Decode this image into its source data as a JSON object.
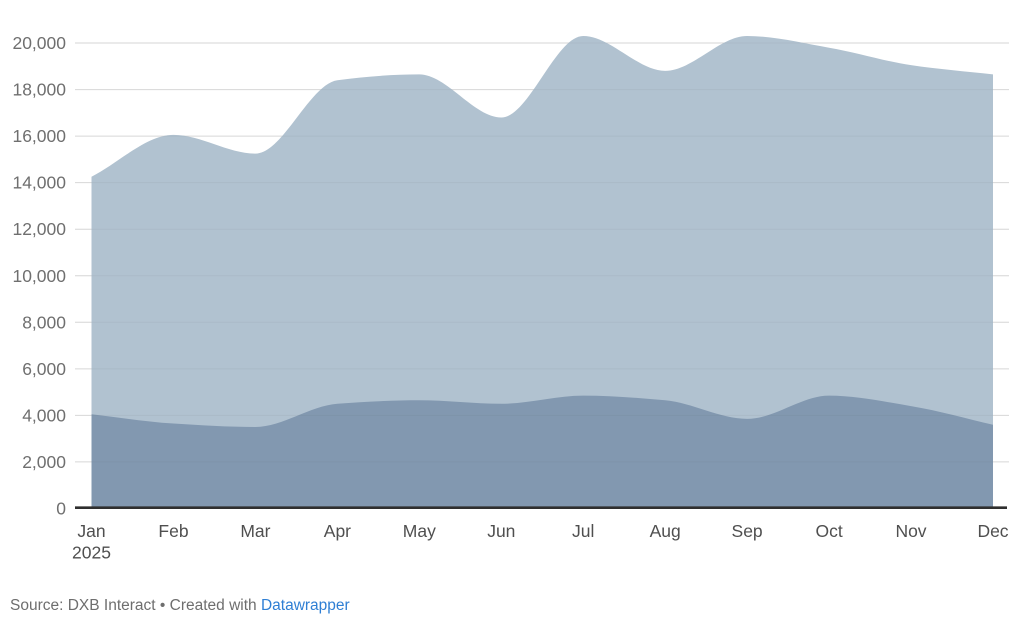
{
  "chart_data": {
    "type": "area",
    "stacked": true,
    "grid": true,
    "legend": "none",
    "x_categories": [
      "Jan",
      "Feb",
      "Mar",
      "Apr",
      "May",
      "Jun",
      "Jul",
      "Aug",
      "Sep",
      "Oct",
      "Nov",
      "Dec"
    ],
    "x_axis_year": "2025",
    "ylim": [
      0,
      20000
    ],
    "y_tick_step": 2000,
    "y_tick_labels": [
      "0",
      "2,000",
      "4,000",
      "6,000",
      "8,000",
      "10,000",
      "12,000",
      "14,000",
      "16,000",
      "18,000",
      "20,000"
    ],
    "series": [
      {
        "name": "light-upper-area-top-boundary",
        "color": "#b1c2d0",
        "values": [
          14250,
          16050,
          15250,
          18400,
          18650,
          16800,
          20300,
          18800,
          20300,
          19800,
          19050,
          18650
        ]
      },
      {
        "name": "dark-lower-area",
        "color": "#8298b0",
        "values": [
          4050,
          3650,
          3500,
          4500,
          4650,
          4500,
          4850,
          4650,
          3850,
          4850,
          4400,
          3600
        ]
      }
    ],
    "colors": {
      "gridline": "#e0e0e0",
      "axis_line": "#2f2f2f",
      "y_label": "#6f6f6f",
      "x_label": "#4f4f4f"
    }
  },
  "footer": {
    "text_before_link": "Source: DXB Interact • Created with ",
    "link_label": "Datawrapper",
    "link_color": "#2f7fd4",
    "text_color": "#6e6e6e"
  }
}
